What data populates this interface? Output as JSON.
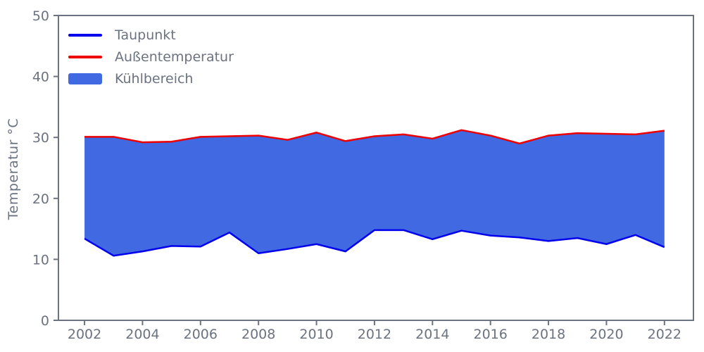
{
  "colors": {
    "axis": "#6b7280",
    "taupunkt_line": "#0000ee",
    "aussentemperatur_line": "#ee0000",
    "fill": "#4169e1",
    "background": "#ffffff"
  },
  "legend": {
    "items": [
      {
        "label": "Taupunkt",
        "type": "line",
        "color": "#0000ee"
      },
      {
        "label": "Außentemperatur",
        "type": "line",
        "color": "#ee0000"
      },
      {
        "label": "Kühlbereich",
        "type": "patch",
        "color": "#4169e1"
      }
    ]
  },
  "chart_data": {
    "type": "area",
    "title": "",
    "xlabel": "",
    "ylabel": "Temperatur °C",
    "x": [
      2002,
      2003,
      2004,
      2005,
      2006,
      2007,
      2008,
      2009,
      2010,
      2011,
      2012,
      2013,
      2014,
      2015,
      2016,
      2017,
      2018,
      2019,
      2020,
      2021,
      2022
    ],
    "series": [
      {
        "name": "Taupunkt",
        "color": "#0000ee",
        "values": [
          13.4,
          10.6,
          11.3,
          12.2,
          12.1,
          14.4,
          11.0,
          11.7,
          12.5,
          11.3,
          14.8,
          14.8,
          13.3,
          14.7,
          13.9,
          13.6,
          13.0,
          13.5,
          12.5,
          14.0,
          12.0
        ]
      },
      {
        "name": "Außentemperatur",
        "color": "#ee0000",
        "values": [
          30.1,
          30.1,
          29.2,
          29.3,
          30.1,
          30.2,
          30.3,
          29.6,
          30.8,
          29.4,
          30.2,
          30.5,
          29.8,
          31.2,
          30.3,
          29.0,
          30.3,
          30.7,
          30.6,
          30.5,
          31.1
        ]
      }
    ],
    "fill_between": {
      "name": "Kühlbereich",
      "lower": "Taupunkt",
      "upper": "Außentemperatur",
      "color": "#4169e1"
    },
    "xlim": [
      2001.1,
      2023.0
    ],
    "ylim": [
      0,
      50
    ],
    "xticks": [
      2002,
      2004,
      2006,
      2008,
      2010,
      2012,
      2014,
      2016,
      2018,
      2020,
      2022
    ],
    "yticks": [
      0,
      10,
      20,
      30,
      40,
      50
    ],
    "grid": false,
    "legend_position": "upper-left"
  }
}
